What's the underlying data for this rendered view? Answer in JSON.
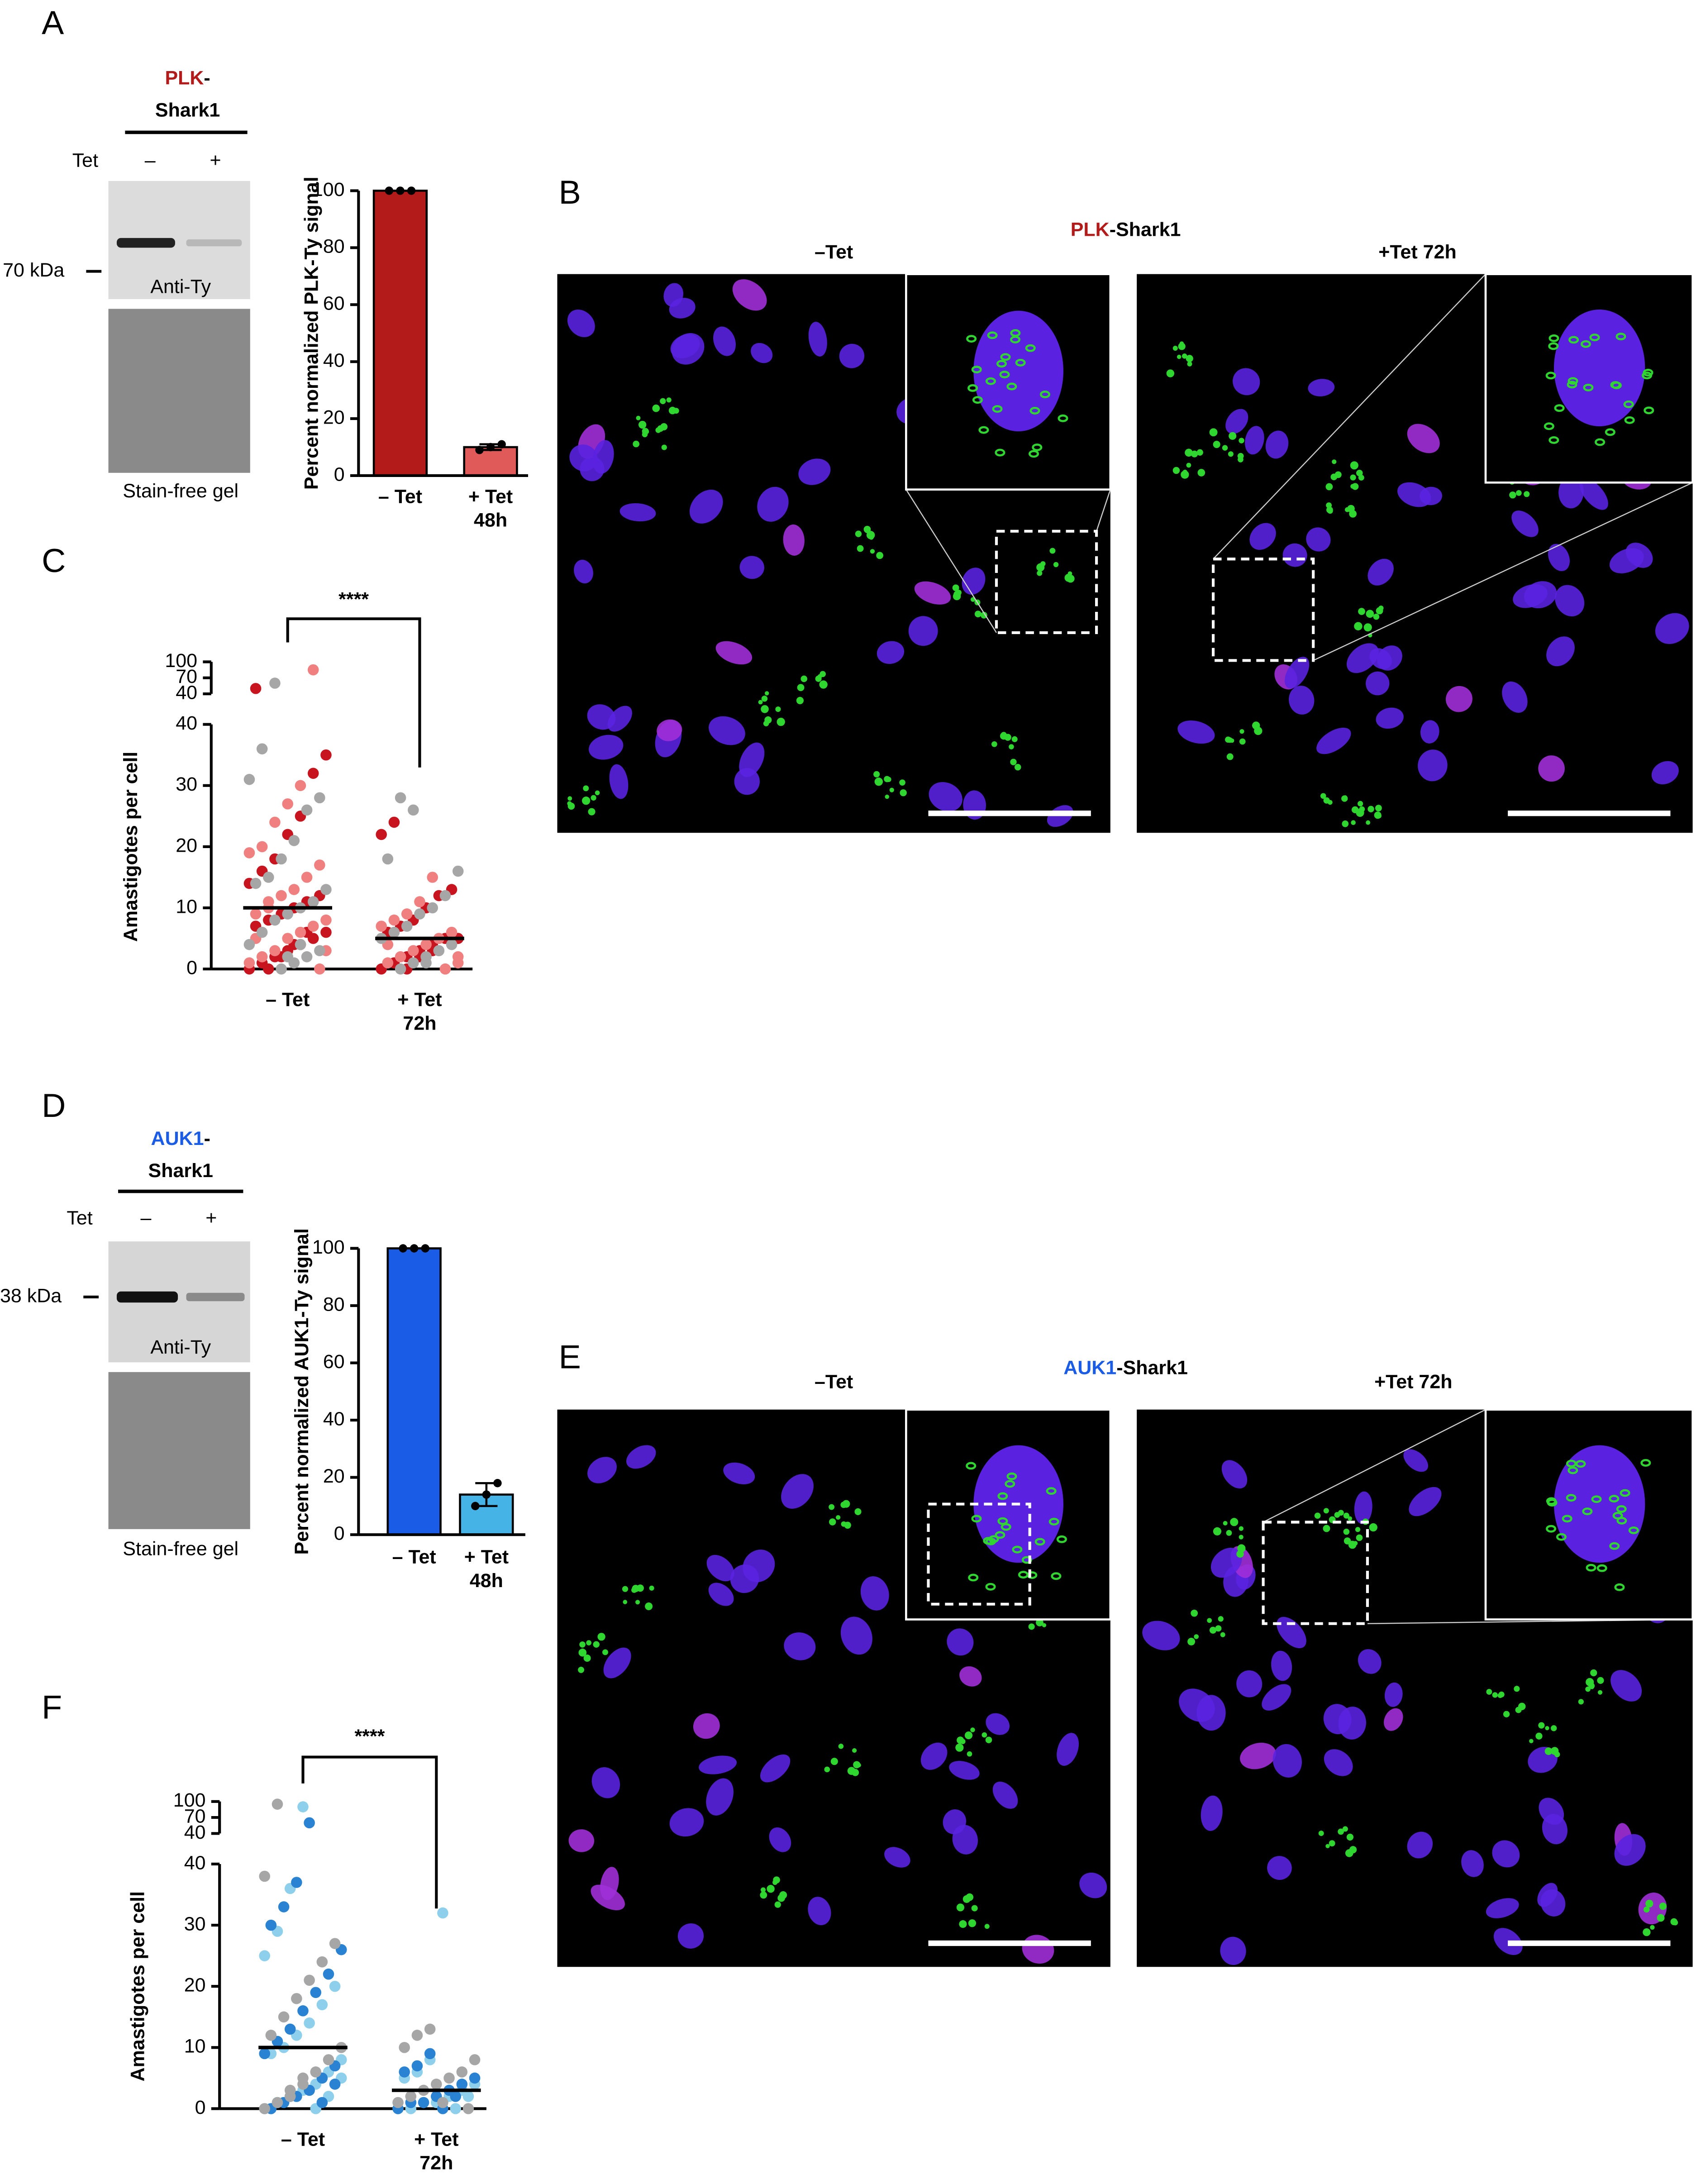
{
  "panel_a": {
    "label": "A",
    "construct": {
      "name": "PLK",
      "suffix": "-",
      "protein": "Shark1",
      "color": "#b31b1b"
    },
    "tet_label": "Tet",
    "tet_conditions": [
      "–",
      "+"
    ],
    "marker": "70 kDa",
    "blot_label": "Anti-Ty",
    "gel_label": "Stain-free gel"
  },
  "panel_b": {
    "label": "B",
    "title": {
      "name": "PLK",
      "rest": "-Shark1",
      "color": "#b31b1b"
    },
    "conditions": [
      "–Tet",
      "+Tet 72h"
    ]
  },
  "panel_d": {
    "label": "D",
    "construct": {
      "name": "AUK1",
      "suffix": "-",
      "protein": "Shark1",
      "color": "#1a5ce6"
    },
    "tet_label": "Tet",
    "tet_conditions": [
      "–",
      "+"
    ],
    "marker": "38 kDa",
    "blot_label": "Anti-Ty",
    "gel_label": "Stain-free gel"
  },
  "panel_e": {
    "label": "E",
    "title": {
      "name": "AUK1",
      "rest": "-Shark1",
      "color": "#1a5ce6"
    },
    "conditions": [
      "–Tet",
      "+Tet 72h"
    ]
  },
  "chart_data": [
    {
      "type": "bar",
      "ylabel": "Percent normalized PLK-Ty signal",
      "categories": [
        [
          "– Tet"
        ],
        [
          "+ Tet",
          "48h"
        ]
      ],
      "values": [
        100,
        10
      ],
      "errors": [
        0,
        1
      ],
      "points": [
        [
          100,
          100,
          100
        ],
        [
          9,
          10,
          11
        ]
      ],
      "colors": [
        "#b31b1b",
        "#e05a5a"
      ],
      "ylim": [
        0,
        100
      ],
      "yticks": [
        0,
        20,
        40,
        60,
        80,
        100
      ]
    },
    {
      "type": "dotplot",
      "panel_label": "C",
      "ylabel": "Amastigotes per cell",
      "categories": [
        [
          "– Tet"
        ],
        [
          "+ Tet",
          "72h"
        ]
      ],
      "ylim": [
        0,
        40
      ],
      "yticks": [
        0,
        10,
        20,
        30,
        40
      ],
      "upper_ylim": [
        40,
        100
      ],
      "upper_yticks": [
        40,
        70,
        100
      ],
      "medians": [
        10,
        5
      ],
      "significance": "****",
      "series": [
        {
          "color": "#c8141e",
          "values": [
            [
              0,
              1,
              2,
              3,
              4,
              5,
              6,
              7,
              8,
              9,
              10,
              11,
              12,
              14,
              16,
              18,
              22,
              25,
              32,
              35,
              50,
              0,
              2,
              4,
              6
            ],
            [
              0,
              1,
              2,
              3,
              4,
              5,
              5,
              6,
              7,
              8,
              10,
              12,
              13,
              22,
              24,
              0,
              2,
              3
            ]
          ]
        },
        {
          "color": "#f08080",
          "values": [
            [
              0,
              1,
              2,
              3,
              5,
              6,
              7,
              8,
              9,
              10,
              12,
              13,
              15,
              17,
              19,
              20,
              24,
              27,
              30,
              85,
              3,
              5,
              11
            ],
            [
              0,
              1,
              1,
              2,
              3,
              4,
              5,
              6,
              7,
              8,
              9,
              11,
              15,
              0,
              2,
              4
            ]
          ]
        },
        {
          "color": "#a6a6a6",
          "values": [
            [
              0,
              1,
              2,
              3,
              4,
              6,
              8,
              9,
              10,
              11,
              13,
              14,
              15,
              18,
              21,
              26,
              28,
              31,
              36,
              60,
              2,
              4
            ],
            [
              0,
              1,
              2,
              3,
              4,
              5,
              6,
              7,
              9,
              10,
              12,
              16,
              18,
              28,
              26,
              1,
              3
            ]
          ]
        }
      ]
    },
    {
      "type": "bar",
      "ylabel": "Percent normalized AUK1-Ty signal",
      "categories": [
        [
          "– Tet"
        ],
        [
          "+ Tet",
          "48h"
        ]
      ],
      "values": [
        100,
        14
      ],
      "errors": [
        0,
        4
      ],
      "points": [
        [
          100,
          100,
          100
        ],
        [
          10,
          14,
          18
        ]
      ],
      "colors": [
        "#1a5ce6",
        "#45b3e6"
      ],
      "ylim": [
        0,
        100
      ],
      "yticks": [
        0,
        20,
        40,
        60,
        80,
        100
      ]
    },
    {
      "type": "dotplot",
      "panel_label": "F",
      "ylabel": "Amastigotes per cell",
      "categories": [
        [
          "– Tet"
        ],
        [
          "+ Tet",
          "72h"
        ]
      ],
      "ylim": [
        0,
        40
      ],
      "yticks": [
        0,
        10,
        20,
        30,
        40
      ],
      "upper_ylim": [
        40,
        100
      ],
      "upper_yticks": [
        40,
        70,
        100
      ],
      "medians": [
        10,
        3
      ],
      "significance": "****",
      "series": [
        {
          "color": "#8ed0ec",
          "values": [
            [
              0,
              1,
              2,
              3,
              4,
              6,
              8,
              9,
              10,
              12,
              14,
              17,
              20,
              25,
              29,
              36,
              90,
              0,
              2,
              5
            ],
            [
              0,
              0,
              1,
              1,
              2,
              3,
              4,
              5,
              6,
              8,
              32,
              0,
              2
            ]
          ]
        },
        {
          "color": "#2a82d2",
          "values": [
            [
              0,
              1,
              2,
              3,
              5,
              7,
              9,
              11,
              13,
              16,
              19,
              22,
              26,
              30,
              33,
              37,
              60,
              1,
              4
            ],
            [
              0,
              1,
              1,
              2,
              3,
              4,
              5,
              6,
              7,
              9,
              0,
              2
            ]
          ]
        },
        {
          "color": "#a6a6a6",
          "values": [
            [
              0,
              1,
              2,
              4,
              6,
              8,
              10,
              12,
              15,
              18,
              21,
              24,
              27,
              38,
              95,
              3,
              5
            ],
            [
              0,
              1,
              2,
              3,
              4,
              5,
              6,
              8,
              10,
              12,
              13,
              1
            ]
          ]
        }
      ]
    }
  ]
}
